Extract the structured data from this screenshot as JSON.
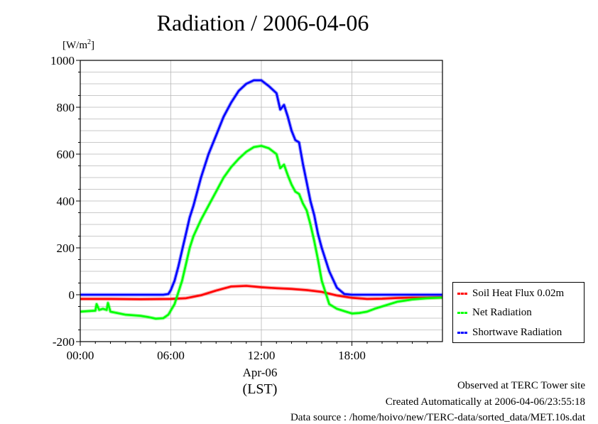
{
  "title": "Radiation / 2006-04-06",
  "unit_label": {
    "text": "[W/m",
    "superscript": "2",
    "close": "]"
  },
  "x_axis": {
    "date_label": "Apr-06",
    "timezone_label": "(LST)"
  },
  "footer": {
    "line1": "Observed at TERC Tower site",
    "line2": "Created Automatically at 2006-04-06/23:55:18",
    "line3": "Data source : /home/hoivo/new/TERC-data/sorted_data/MET.10s.dat"
  },
  "chart_data": {
    "type": "line",
    "title": "Radiation / 2006-04-06",
    "xlabel": "Apr-06 (LST)",
    "ylabel": "[W/m2]",
    "xlim": [
      "00:00",
      "24:00"
    ],
    "ylim": [
      -200,
      1000
    ],
    "x_ticks": [
      "00:00",
      "06:00",
      "12:00",
      "18:00"
    ],
    "y_ticks": [
      "1000",
      "800",
      "600",
      "400",
      "200",
      "0",
      "-200"
    ],
    "grid": true,
    "legend_position": "right, outside lower",
    "series": [
      {
        "name": "Soil Heat Flux 0.02m",
        "color": "#ff0000",
        "x": [
          "00:00",
          "02:00",
          "04:00",
          "06:00",
          "07:00",
          "08:00",
          "09:00",
          "10:00",
          "11:00",
          "12:00",
          "13:00",
          "14:00",
          "15:00",
          "16:00",
          "17:00",
          "18:00",
          "19:00",
          "20:00",
          "21:00",
          "22:00",
          "23:00",
          "23:59"
        ],
        "y": [
          -18,
          -18,
          -19,
          -18,
          -15,
          -2,
          18,
          35,
          38,
          32,
          28,
          25,
          20,
          12,
          -3,
          -13,
          -18,
          -17,
          -14,
          -12,
          -12,
          -11
        ]
      },
      {
        "name": "Net Radiation",
        "color": "#00ff00",
        "x": [
          "00:00",
          "00:30",
          "01:00",
          "01:05",
          "01:15",
          "01:30",
          "01:45",
          "01:50",
          "02:00",
          "03:00",
          "04:00",
          "04:30",
          "05:00",
          "05:30",
          "05:50",
          "06:15",
          "06:30",
          "06:45",
          "07:00",
          "07:15",
          "07:30",
          "08:00",
          "08:30",
          "09:00",
          "09:30",
          "10:00",
          "10:30",
          "11:00",
          "11:30",
          "12:00",
          "12:30",
          "13:00",
          "13:15",
          "13:30",
          "13:45",
          "14:00",
          "14:15",
          "14:30",
          "14:45",
          "15:00",
          "15:15",
          "15:30",
          "15:45",
          "16:00",
          "16:30",
          "17:00",
          "17:30",
          "18:00",
          "18:30",
          "19:00",
          "19:30",
          "20:00",
          "20:30",
          "21:00",
          "21:30",
          "22:00",
          "23:00",
          "23:59"
        ],
        "y": [
          -72,
          -70,
          -68,
          -40,
          -65,
          -60,
          -65,
          -35,
          -72,
          -85,
          -90,
          -95,
          -102,
          -100,
          -85,
          -40,
          10,
          60,
          130,
          200,
          250,
          320,
          380,
          440,
          500,
          545,
          580,
          610,
          630,
          635,
          625,
          600,
          540,
          555,
          510,
          470,
          440,
          430,
          390,
          360,
          300,
          230,
          150,
          60,
          -40,
          -60,
          -70,
          -80,
          -78,
          -72,
          -60,
          -50,
          -40,
          -30,
          -25,
          -20,
          -15,
          -12
        ]
      },
      {
        "name": "Shortwave Radiation",
        "color": "#0000ff",
        "x": [
          "00:00",
          "02:00",
          "04:00",
          "05:00",
          "05:30",
          "05:50",
          "06:00",
          "06:15",
          "06:30",
          "06:45",
          "07:00",
          "07:15",
          "07:30",
          "07:45",
          "08:00",
          "08:30",
          "09:00",
          "09:30",
          "10:00",
          "10:30",
          "11:00",
          "11:30",
          "12:00",
          "12:30",
          "13:00",
          "13:15",
          "13:30",
          "13:45",
          "14:00",
          "14:15",
          "14:30",
          "14:45",
          "15:00",
          "15:15",
          "15:30",
          "15:45",
          "16:00",
          "16:30",
          "17:00",
          "17:30",
          "18:00",
          "19:00",
          "20:00",
          "21:00",
          "22:00",
          "23:00",
          "23:59"
        ],
        "y": [
          0,
          0,
          0,
          0,
          0,
          3,
          20,
          60,
          120,
          190,
          260,
          330,
          380,
          440,
          500,
          600,
          680,
          760,
          820,
          870,
          900,
          915,
          915,
          890,
          860,
          790,
          810,
          760,
          700,
          660,
          650,
          560,
          480,
          400,
          340,
          260,
          200,
          100,
          30,
          3,
          0,
          0,
          0,
          0,
          0,
          0,
          0
        ]
      }
    ]
  }
}
